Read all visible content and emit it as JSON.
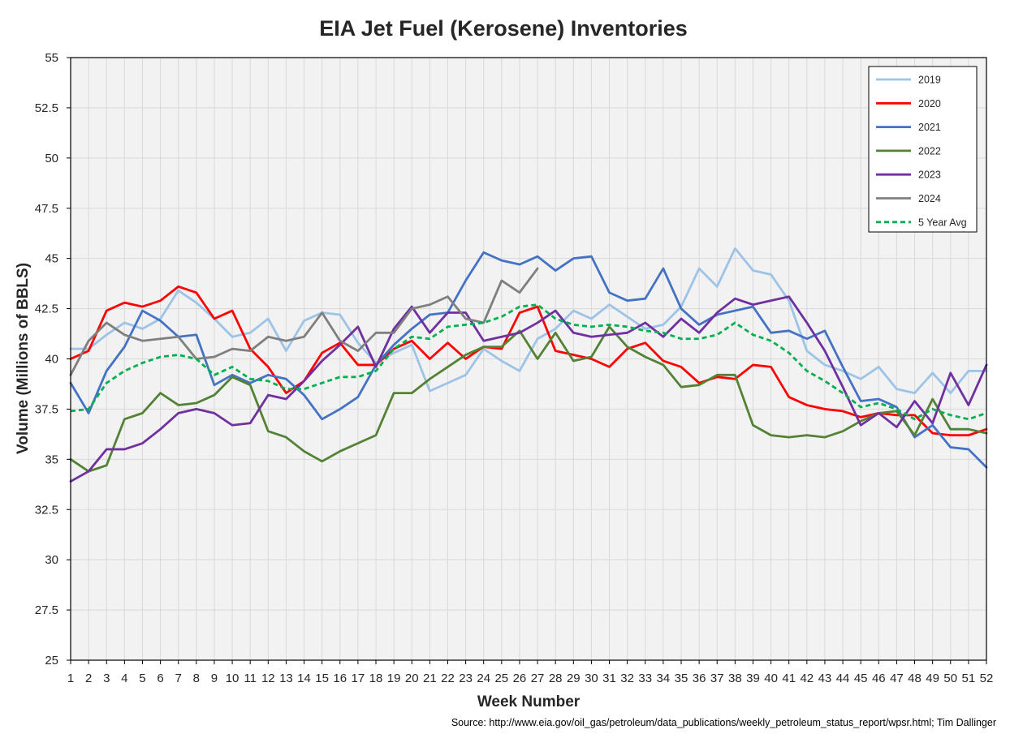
{
  "chart_data": {
    "type": "line",
    "title": "EIA Jet Fuel (Kerosene) Inventories",
    "xlabel": "Week Number",
    "ylabel": "Volume (Millions of BBLS)",
    "source": "Source: http://www.eia.gov/oil_gas/petroleum/data_publications/weekly_petroleum_status_report/wpsr.html; Tim Dallinger",
    "xlim": [
      1,
      52
    ],
    "ylim": [
      25,
      55
    ],
    "yticks": [
      25,
      27.5,
      30,
      32.5,
      35,
      37.5,
      40,
      42.5,
      45,
      47.5,
      50,
      52.5,
      55
    ],
    "ytick_labels": [
      "25",
      "27.5",
      "30",
      "32.5",
      "35",
      "37.5",
      "40",
      "42.5",
      "45",
      "47.5",
      "50",
      "52.5",
      "55"
    ],
    "xticks": [
      1,
      2,
      3,
      4,
      5,
      6,
      7,
      8,
      9,
      10,
      11,
      12,
      13,
      14,
      15,
      16,
      17,
      18,
      19,
      20,
      21,
      22,
      23,
      24,
      25,
      26,
      27,
      28,
      29,
      30,
      31,
      32,
      33,
      34,
      35,
      36,
      37,
      38,
      39,
      40,
      41,
      42,
      43,
      44,
      45,
      46,
      47,
      48,
      49,
      50,
      51,
      52
    ],
    "grid": "both",
    "legend_position": "top-right",
    "series": [
      {
        "name": "2019",
        "color": "#9DC3E6",
        "dashed": false,
        "values": [
          40.5,
          40.5,
          41.2,
          41.8,
          41.5,
          42.0,
          43.4,
          42.8,
          42.0,
          41.1,
          41.3,
          42.0,
          40.4,
          41.9,
          42.3,
          42.2,
          40.8,
          39.8,
          40.3,
          40.7,
          38.4,
          38.8,
          39.2,
          40.5,
          39.9,
          39.4,
          41.0,
          41.5,
          42.4,
          42.0,
          42.7,
          42.1,
          41.5,
          41.7,
          42.6,
          44.5,
          43.6,
          45.5,
          44.4,
          44.2,
          42.9,
          40.4,
          39.7,
          39.4,
          39.0,
          39.6,
          38.5,
          38.3,
          39.3,
          38.3,
          39.4,
          39.4
        ]
      },
      {
        "name": "2020",
        "color": "#FF0000",
        "dashed": false,
        "values": [
          40.0,
          40.4,
          42.4,
          42.8,
          42.6,
          42.9,
          43.6,
          43.3,
          42.0,
          42.4,
          40.5,
          39.6,
          38.3,
          38.9,
          40.3,
          40.8,
          39.7,
          39.7,
          40.5,
          40.9,
          40.0,
          40.8,
          40.0,
          40.6,
          40.5,
          42.3,
          42.6,
          40.4,
          40.2,
          40.0,
          39.6,
          40.5,
          40.8,
          39.9,
          39.6,
          38.8,
          39.1,
          39.0,
          39.7,
          39.6,
          38.1,
          37.7,
          37.5,
          37.4,
          37.1,
          37.3,
          37.2,
          37.2,
          36.3,
          36.2,
          36.2,
          36.5
        ]
      },
      {
        "name": "2021",
        "color": "#4472C4",
        "dashed": false,
        "values": [
          38.8,
          37.3,
          39.4,
          40.6,
          42.4,
          41.9,
          41.1,
          41.2,
          38.7,
          39.2,
          38.8,
          39.2,
          39.0,
          38.2,
          37.0,
          37.5,
          38.1,
          39.7,
          40.7,
          41.5,
          42.2,
          42.3,
          43.9,
          45.3,
          44.9,
          44.7,
          45.1,
          44.4,
          45.0,
          45.1,
          43.3,
          42.9,
          43.0,
          44.5,
          42.5,
          41.7,
          42.2,
          42.4,
          42.6,
          41.3,
          41.4,
          41.0,
          41.4,
          39.6,
          37.9,
          38.0,
          37.6,
          36.1,
          36.7,
          35.6,
          35.5,
          34.6
        ]
      },
      {
        "name": "2022",
        "color": "#548235",
        "dashed": false,
        "values": [
          35.0,
          34.4,
          34.7,
          37.0,
          37.3,
          38.3,
          37.7,
          37.8,
          38.2,
          39.1,
          38.7,
          36.4,
          36.1,
          35.4,
          34.9,
          35.4,
          35.8,
          36.2,
          38.3,
          38.3,
          39.0,
          39.6,
          40.2,
          40.6,
          40.6,
          41.4,
          40.0,
          41.3,
          39.9,
          40.1,
          41.6,
          40.6,
          40.1,
          39.7,
          38.6,
          38.7,
          39.2,
          39.2,
          36.7,
          36.2,
          36.1,
          36.2,
          36.1,
          36.4,
          36.9,
          37.3,
          37.4,
          36.2,
          38.0,
          36.5,
          36.5,
          36.3
        ]
      },
      {
        "name": "2023",
        "color": "#7030A0",
        "dashed": false,
        "values": [
          33.9,
          34.4,
          35.5,
          35.5,
          35.8,
          36.5,
          37.3,
          37.5,
          37.3,
          36.7,
          36.8,
          38.2,
          38.0,
          38.9,
          39.9,
          40.7,
          41.6,
          39.6,
          41.5,
          42.6,
          41.3,
          42.3,
          42.3,
          40.9,
          41.1,
          41.3,
          41.8,
          42.4,
          41.3,
          41.1,
          41.2,
          41.3,
          41.8,
          41.1,
          42.0,
          41.3,
          42.3,
          43.0,
          42.7,
          42.9,
          43.1,
          41.8,
          40.4,
          38.6,
          36.7,
          37.3,
          36.6,
          37.9,
          36.8,
          39.3,
          37.7,
          39.7
        ]
      },
      {
        "name": "2024",
        "color": "#7F7F7F",
        "dashed": false,
        "values": [
          39.2,
          40.9,
          41.8,
          41.2,
          40.9,
          41.0,
          41.1,
          40.0,
          40.1,
          40.5,
          40.4,
          41.1,
          40.9,
          41.1,
          42.3,
          40.9,
          40.4,
          41.3,
          41.3,
          42.5,
          42.7,
          43.1,
          42.0,
          41.8,
          43.9,
          43.3,
          44.5
        ]
      },
      {
        "name": "5 Year Avg",
        "color": "#00B050",
        "dashed": true,
        "values": [
          37.4,
          37.5,
          38.8,
          39.4,
          39.8,
          40.1,
          40.2,
          40.0,
          39.2,
          39.6,
          39.0,
          38.9,
          38.5,
          38.5,
          38.8,
          39.1,
          39.1,
          39.4,
          40.5,
          41.1,
          41.0,
          41.6,
          41.7,
          41.8,
          42.1,
          42.6,
          42.7,
          42.0,
          41.7,
          41.6,
          41.7,
          41.6,
          41.4,
          41.3,
          41.0,
          41.0,
          41.2,
          41.8,
          41.2,
          40.9,
          40.3,
          39.4,
          38.9,
          38.3,
          37.6,
          37.8,
          37.5,
          37.0,
          37.5,
          37.2,
          37.0,
          37.3
        ]
      }
    ]
  }
}
